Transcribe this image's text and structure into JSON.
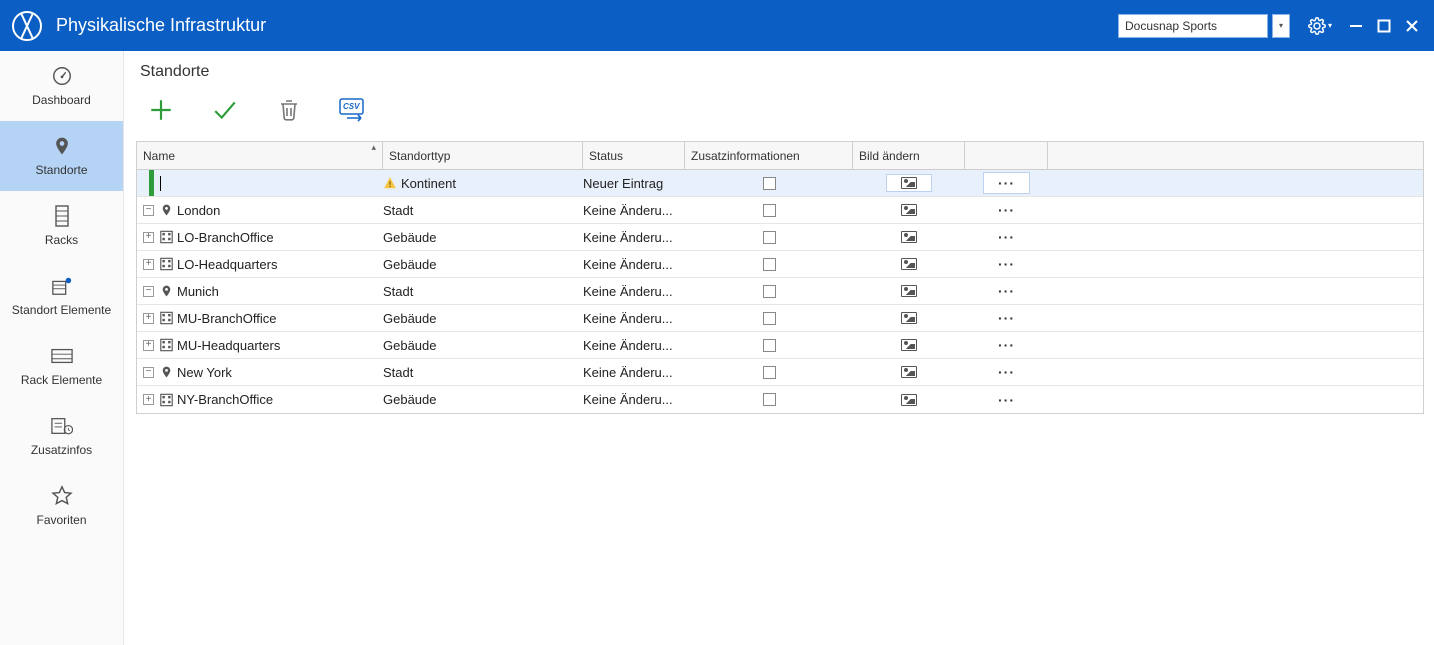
{
  "colors": {
    "primary": "#0a5ec4",
    "sidebar_active": "#b5d3f5",
    "new_row_bg": "#e8f0fb",
    "green": "#2e9c3a",
    "border": "#cfcfcf"
  },
  "window": {
    "title": "Physikalische Infrastruktur",
    "tenant": "Docusnap Sports"
  },
  "sidebar": {
    "items": [
      {
        "label": "Dashboard",
        "icon": "gauge"
      },
      {
        "label": "Standorte",
        "icon": "pin",
        "active": true
      },
      {
        "label": "Racks",
        "icon": "rack"
      },
      {
        "label": "Standort Elemente",
        "icon": "building-pin"
      },
      {
        "label": "Rack Elemente",
        "icon": "rack-wide"
      },
      {
        "label": "Zusatzinfos",
        "icon": "info-clock"
      },
      {
        "label": "Favoriten",
        "icon": "star"
      }
    ]
  },
  "page": {
    "title": "Standorte"
  },
  "toolbar": {
    "add": "add",
    "confirm": "confirm",
    "delete": "delete",
    "export": "export-csv"
  },
  "table": {
    "columns": {
      "name": "Name",
      "type": "Standorttyp",
      "status": "Status",
      "info": "Zusatzinformationen",
      "image": "Bild ändern"
    },
    "new_row": {
      "type": "Kontinent",
      "status": "Neuer Eintrag"
    },
    "rows": [
      {
        "level": 0,
        "expand": "minus",
        "icon": "pin",
        "name": "London",
        "type": "Stadt",
        "status": "Keine Änderu..."
      },
      {
        "level": 1,
        "expand": "plus",
        "icon": "building",
        "name": "LO-BranchOffice",
        "type": "Gebäude",
        "status": "Keine Änderu..."
      },
      {
        "level": 1,
        "expand": "plus",
        "icon": "building",
        "name": "LO-Headquarters",
        "type": "Gebäude",
        "status": "Keine Änderu..."
      },
      {
        "level": 0,
        "expand": "minus",
        "icon": "pin",
        "name": "Munich",
        "type": "Stadt",
        "status": "Keine Änderu..."
      },
      {
        "level": 1,
        "expand": "plus",
        "icon": "building",
        "name": "MU-BranchOffice",
        "type": "Gebäude",
        "status": "Keine Änderu..."
      },
      {
        "level": 1,
        "expand": "plus",
        "icon": "building",
        "name": "MU-Headquarters",
        "type": "Gebäude",
        "status": "Keine Änderu..."
      },
      {
        "level": 0,
        "expand": "minus",
        "icon": "pin",
        "name": "New York",
        "type": "Stadt",
        "status": "Keine Änderu..."
      },
      {
        "level": 1,
        "expand": "plus",
        "icon": "building",
        "name": "NY-BranchOffice",
        "type": "Gebäude",
        "status": "Keine Änderu..."
      }
    ]
  }
}
